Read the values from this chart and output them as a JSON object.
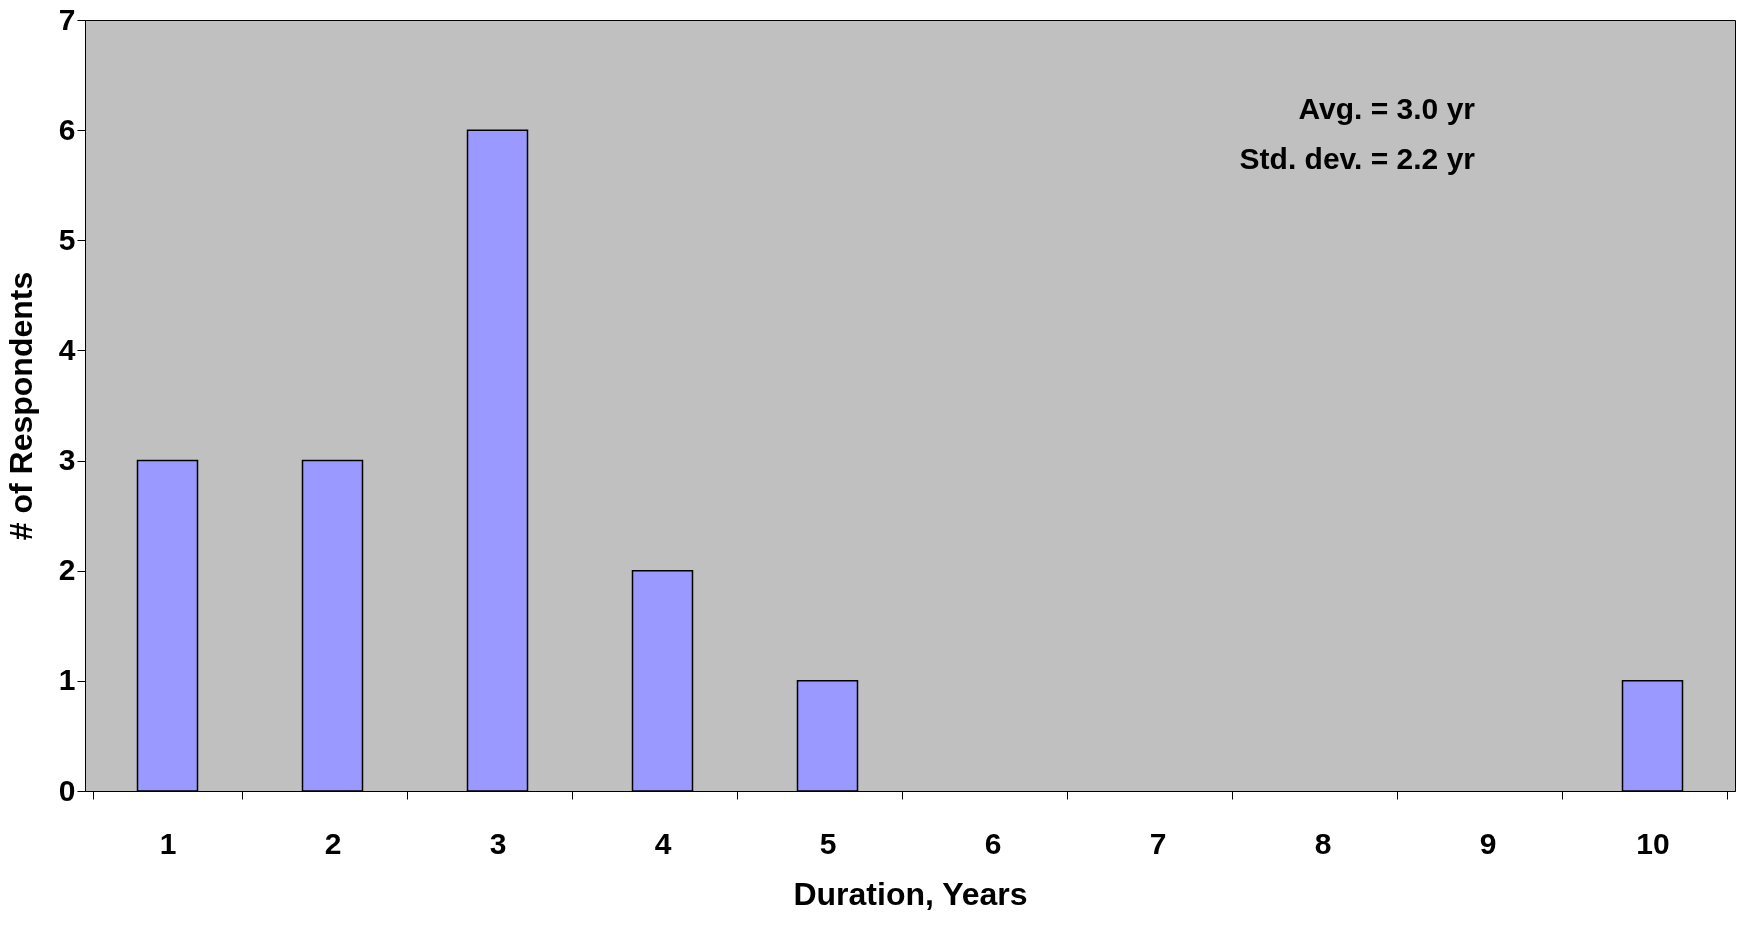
{
  "chart_data": {
    "type": "bar",
    "xlabel": "Duration, Years",
    "ylabel": "# of Respondents",
    "categories": [
      "1",
      "2",
      "3",
      "4",
      "5",
      "6",
      "7",
      "8",
      "9",
      "10"
    ],
    "values": [
      3,
      3,
      6,
      2,
      1,
      0,
      0,
      0,
      0,
      1
    ],
    "color": "#9999ff",
    "ylim": [
      0,
      7
    ],
    "yticks": [
      0,
      1,
      2,
      3,
      4,
      5,
      6,
      7
    ],
    "grid": false,
    "annotations": [
      "Avg. = 3.0 yr",
      "Std. dev. = 2.2 yr"
    ]
  }
}
